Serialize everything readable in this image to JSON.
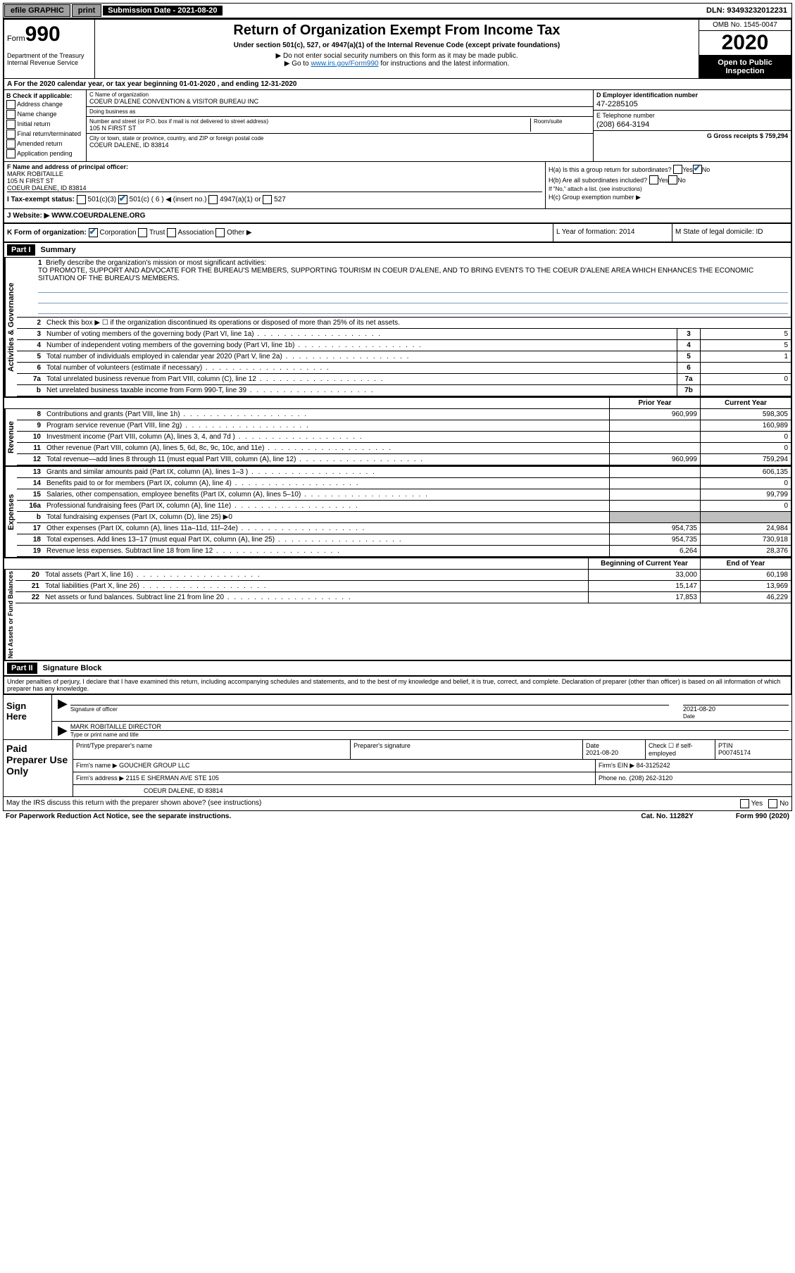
{
  "topbar": {
    "efile": "efile GRAPHIC",
    "print": "print",
    "sub_label": "Submission Date - 2021-08-20",
    "dln": "DLN: 93493232012231"
  },
  "header": {
    "form_prefix": "Form",
    "form_num": "990",
    "dept": "Department of the Treasury\nInternal Revenue Service",
    "title": "Return of Organization Exempt From Income Tax",
    "subtitle": "Under section 501(c), 527, or 4947(a)(1) of the Internal Revenue Code (except private foundations)",
    "instr1": "▶ Do not enter social security numbers on this form as it may be made public.",
    "instr2_pre": "▶ Go to ",
    "instr2_link": "www.irs.gov/Form990",
    "instr2_post": " for instructions and the latest information.",
    "omb": "OMB No. 1545-0047",
    "year": "2020",
    "open_public": "Open to Public Inspection"
  },
  "rowA": "A For the 2020 calendar year, or tax year beginning 01-01-2020    , and ending 12-31-2020",
  "colB": {
    "hdr": "B Check if applicable:",
    "items": [
      "Address change",
      "Name change",
      "Initial return",
      "Final return/terminated",
      "Amended return",
      "Application pending"
    ]
  },
  "colC": {
    "name_lbl": "C Name of organization",
    "name": "COEUR D'ALENE CONVENTION & VISITOR BUREAU INC",
    "dba_lbl": "Doing business as",
    "addr_lbl": "Number and street (or P.O. box if mail is not delivered to street address)",
    "room_lbl": "Room/suite",
    "addr": "105 N FIRST ST",
    "city_lbl": "City or town, state or province, country, and ZIP or foreign postal code",
    "city": "COEUR DALENE, ID  83814"
  },
  "colD": {
    "ein_lbl": "D Employer identification number",
    "ein": "47-2285105",
    "phone_lbl": "E Telephone number",
    "phone": "(208) 664-3194",
    "gross_lbl": "G Gross receipts $ 759,294"
  },
  "rowF": {
    "lbl": "F  Name and address of principal officer:",
    "name": "MARK ROBITAILLE",
    "addr1": "105 N FIRST ST",
    "addr2": "COEUR DALENE, ID  83814"
  },
  "rowH": {
    "a": "H(a)  Is this a group return for subordinates?",
    "b": "H(b)  Are all subordinates included?",
    "b_note": "If \"No,\" attach a list. (see instructions)",
    "c": "H(c)  Group exemption number ▶",
    "yes": "Yes",
    "no": "No"
  },
  "rowI": {
    "lbl": "I   Tax-exempt status:",
    "opts": [
      "501(c)(3)",
      "501(c) ( 6 ) ◀ (insert no.)",
      "4947(a)(1) or",
      "527"
    ]
  },
  "rowJ": {
    "lbl": "J   Website: ▶",
    "val": "WWW.COEURDALENE.ORG"
  },
  "rowK": {
    "lbl": "K Form of organization:",
    "opts": [
      "Corporation",
      "Trust",
      "Association",
      "Other ▶"
    ]
  },
  "rowL": {
    "lbl": "L Year of formation: 2014"
  },
  "rowM": {
    "lbl": "M State of legal domicile: ID"
  },
  "part1": {
    "hdr": "Part I",
    "title": "Summary",
    "q1_lbl": "1",
    "q1": "Briefly describe the organization's mission or most significant activities:",
    "mission": "TO PROMOTE, SUPPORT AND ADVOCATE FOR THE BUREAU'S MEMBERS, SUPPORTING TOURISM IN COEUR D'ALENE, AND TO BRING EVENTS TO THE COEUR D'ALENE AREA WHICH ENHANCES THE ECONOMIC SITUATION OF THE BUREAU'S MEMBERS.",
    "q2": "Check this box ▶ ☐ if the organization discontinued its operations or disposed of more than 25% of its net assets.",
    "lines_ag": [
      {
        "n": "3",
        "d": "Number of voting members of the governing body (Part VI, line 1a)",
        "box": "3",
        "v": "5"
      },
      {
        "n": "4",
        "d": "Number of independent voting members of the governing body (Part VI, line 1b)",
        "box": "4",
        "v": "5"
      },
      {
        "n": "5",
        "d": "Total number of individuals employed in calendar year 2020 (Part V, line 2a)",
        "box": "5",
        "v": "1"
      },
      {
        "n": "6",
        "d": "Total number of volunteers (estimate if necessary)",
        "box": "6",
        "v": ""
      },
      {
        "n": "7a",
        "d": "Total unrelated business revenue from Part VIII, column (C), line 12",
        "box": "7a",
        "v": "0"
      },
      {
        "n": "b",
        "d": "Net unrelated business taxable income from Form 990-T, line 39",
        "box": "7b",
        "v": ""
      }
    ],
    "prior_hdr": "Prior Year",
    "curr_hdr": "Current Year",
    "revenue": [
      {
        "n": "8",
        "d": "Contributions and grants (Part VIII, line 1h)",
        "p": "960,999",
        "c": "598,305"
      },
      {
        "n": "9",
        "d": "Program service revenue (Part VIII, line 2g)",
        "p": "",
        "c": "160,989"
      },
      {
        "n": "10",
        "d": "Investment income (Part VIII, column (A), lines 3, 4, and 7d )",
        "p": "",
        "c": "0"
      },
      {
        "n": "11",
        "d": "Other revenue (Part VIII, column (A), lines 5, 6d, 8c, 9c, 10c, and 11e)",
        "p": "",
        "c": "0"
      },
      {
        "n": "12",
        "d": "Total revenue—add lines 8 through 11 (must equal Part VIII, column (A), line 12)",
        "p": "960,999",
        "c": "759,294"
      }
    ],
    "expenses": [
      {
        "n": "13",
        "d": "Grants and similar amounts paid (Part IX, column (A), lines 1–3 )",
        "p": "",
        "c": "606,135"
      },
      {
        "n": "14",
        "d": "Benefits paid to or for members (Part IX, column (A), line 4)",
        "p": "",
        "c": "0"
      },
      {
        "n": "15",
        "d": "Salaries, other compensation, employee benefits (Part IX, column (A), lines 5–10)",
        "p": "",
        "c": "99,799"
      },
      {
        "n": "16a",
        "d": "Professional fundraising fees (Part IX, column (A), line 11e)",
        "p": "",
        "c": "0"
      },
      {
        "n": "b",
        "d": "Total fundraising expenses (Part IX, column (D), line 25) ▶0",
        "gray": true
      },
      {
        "n": "17",
        "d": "Other expenses (Part IX, column (A), lines 11a–11d, 11f–24e)",
        "p": "954,735",
        "c": "24,984"
      },
      {
        "n": "18",
        "d": "Total expenses. Add lines 13–17 (must equal Part IX, column (A), line 25)",
        "p": "954,735",
        "c": "730,918"
      },
      {
        "n": "19",
        "d": "Revenue less expenses. Subtract line 18 from line 12",
        "p": "6,264",
        "c": "28,376"
      }
    ],
    "na_hdr_p": "Beginning of Current Year",
    "na_hdr_c": "End of Year",
    "netassets": [
      {
        "n": "20",
        "d": "Total assets (Part X, line 16)",
        "p": "33,000",
        "c": "60,198"
      },
      {
        "n": "21",
        "d": "Total liabilities (Part X, line 26)",
        "p": "15,147",
        "c": "13,969"
      },
      {
        "n": "22",
        "d": "Net assets or fund balances. Subtract line 21 from line 20",
        "p": "17,853",
        "c": "46,229"
      }
    ],
    "side_ag": "Activities & Governance",
    "side_rev": "Revenue",
    "side_exp": "Expenses",
    "side_na": "Net Assets or Fund Balances"
  },
  "part2": {
    "hdr": "Part II",
    "title": "Signature Block",
    "decl": "Under penalties of perjury, I declare that I have examined this return, including accompanying schedules and statements, and to the best of my knowledge and belief, it is true, correct, and complete. Declaration of preparer (other than officer) is based on all information of which preparer has any knowledge."
  },
  "sign": {
    "left": "Sign Here",
    "sig_lbl": "Signature of officer",
    "date": "2021-08-20",
    "date_lbl": "Date",
    "name": "MARK ROBITAILLE  DIRECTOR",
    "name_lbl": "Type or print name and title"
  },
  "paid": {
    "left": "Paid Preparer Use Only",
    "r1": {
      "c1": "Print/Type preparer's name",
      "c2": "Preparer's signature",
      "c3": "Date",
      "c3v": "2021-08-20",
      "c4": "Check ☐ if self-employed",
      "c5": "PTIN",
      "c5v": "P00745174"
    },
    "r2": {
      "c1": "Firm's name    ▶",
      "c1v": "GOUCHER GROUP LLC",
      "c2": "Firm's EIN ▶ 84-3125242"
    },
    "r3": {
      "c1": "Firm's address ▶",
      "c1v": "2115 E SHERMAN AVE STE 105",
      "c2": "Phone no. (208) 262-3120"
    },
    "r4": "COEUR DALENE, ID  83814"
  },
  "may_irs": "May the IRS discuss this return with the preparer shown above? (see instructions)",
  "footer": {
    "left": "For Paperwork Reduction Act Notice, see the separate instructions.",
    "mid": "Cat. No. 11282Y",
    "right": "Form 990 (2020)"
  }
}
